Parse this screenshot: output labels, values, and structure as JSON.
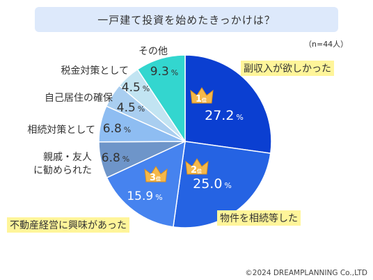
{
  "title": "一戸建て投資を始めたきっかけは？",
  "note": "（n=44人）",
  "copyright": "©2024 DREAMPLANNING Co.,LTD",
  "colors": {
    "title_bg": "#dde9fb",
    "highlight": "#fff59a"
  },
  "chart_data": {
    "type": "pie",
    "unit": "%",
    "slices": [
      {
        "label": "副収入が欲しかった",
        "value": 27.2,
        "color": "#0b3fd1",
        "rank": "1位"
      },
      {
        "label": "物件を相続等した",
        "value": 25.0,
        "color": "#2563e3",
        "rank": "2位"
      },
      {
        "label": "不動産経営に興味があった",
        "value": 15.9,
        "color": "#4683ef",
        "rank": "3位"
      },
      {
        "label": "親戚・友人\nに勧められた",
        "value": 6.8,
        "color": "#6e95c9"
      },
      {
        "label": "相続対策として",
        "value": 6.8,
        "color": "#8ebdf2"
      },
      {
        "label": "自己居住の確保",
        "value": 4.5,
        "color": "#a9cef0"
      },
      {
        "label": "税金対策として",
        "value": 4.5,
        "color": "#c2e4f2"
      },
      {
        "label": "その他",
        "value": 9.3,
        "color": "#33d6cf"
      }
    ]
  }
}
